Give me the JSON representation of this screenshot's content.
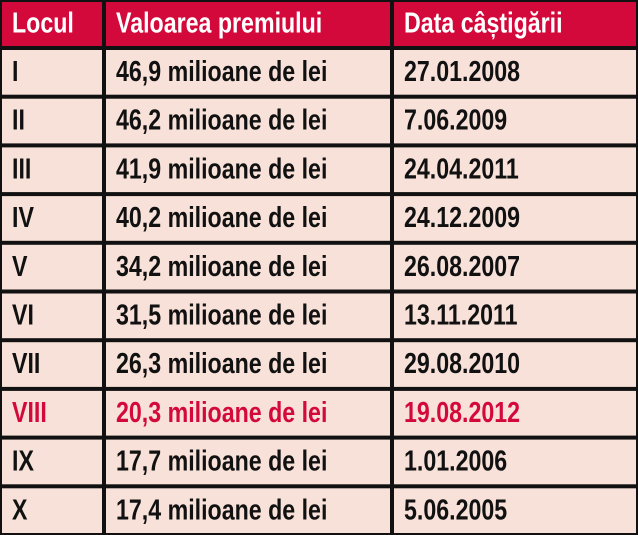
{
  "table": {
    "header": [
      "Locul",
      "Valoarea premiului",
      "Data câștigării"
    ],
    "rows": [
      [
        "I",
        "46,9 milioane de lei",
        "27.01.2008"
      ],
      [
        "II",
        "46,2 milioane de lei",
        "7.06.2009"
      ],
      [
        "III",
        "41,9 milioane de lei",
        "24.04.2011"
      ],
      [
        "IV",
        "40,2 milioane de lei",
        "24.12.2009"
      ],
      [
        "V",
        "34,2 milioane de lei",
        "26.08.2007"
      ],
      [
        "VI",
        "31,5 milioane de lei",
        "13.11.2011"
      ],
      [
        "VII",
        "26,3 milioane de lei",
        "29.08.2010"
      ],
      [
        "VIII",
        "20,3 milioane de lei",
        "19.08.2012"
      ],
      [
        "IX",
        "17,7 milioane de lei",
        "1.01.2006"
      ],
      [
        "X",
        "17,4 milioane de lei",
        "5.06.2005"
      ]
    ],
    "highlighted_row": 7,
    "header_color": "#d4093b",
    "highlight_color": "#d4093b"
  }
}
